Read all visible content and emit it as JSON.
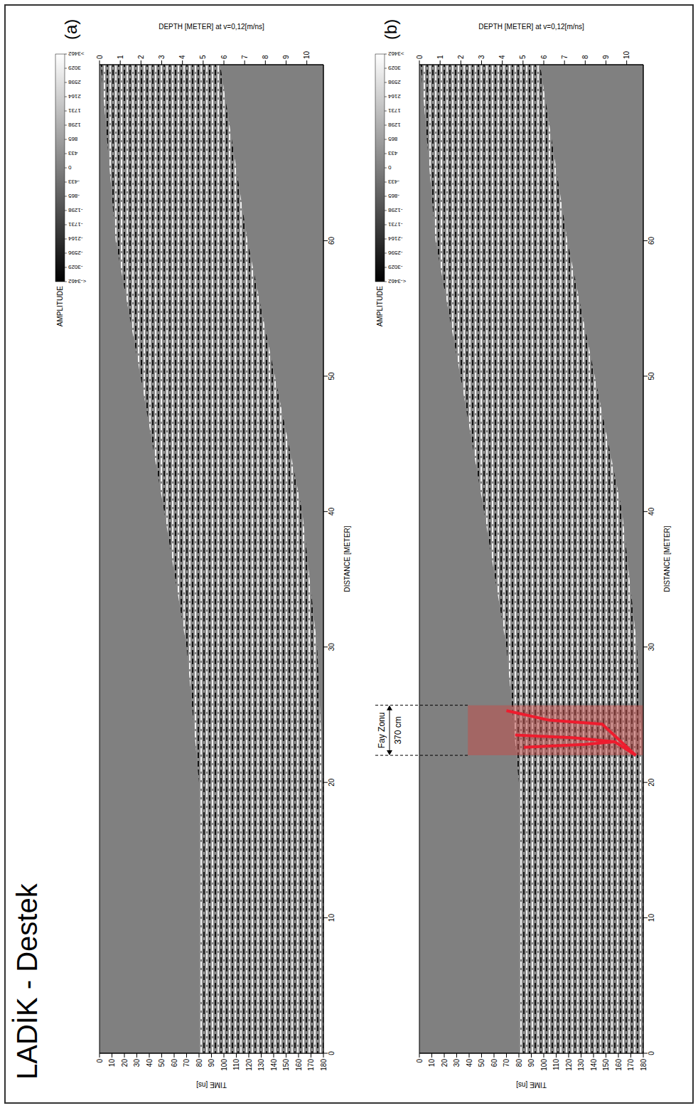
{
  "title": "LADİK - Destek",
  "chart_data": [
    {
      "type": "area",
      "panel_label": "(a)",
      "x_label": "DISTANCE [METER]",
      "y_label": "TIME [ns]",
      "y2_label": "DEPTH [METER] at v=0,12[m/ns]",
      "x": [
        0,
        20,
        30,
        40,
        50,
        60,
        73
      ],
      "top": [
        80,
        80,
        70,
        52,
        33,
        13,
        1
      ],
      "bottom": [
        180,
        180,
        175,
        163,
        141,
        119,
        97
      ],
      "xlim": [
        0,
        73
      ],
      "xticks": [
        0,
        10,
        20,
        30,
        40,
        50,
        60
      ],
      "ylim": [
        0,
        180
      ],
      "yticks": [
        0,
        10,
        20,
        30,
        40,
        50,
        60,
        70,
        80,
        90,
        100,
        110,
        120,
        130,
        140,
        150,
        160,
        170,
        180
      ],
      "y2lim": [
        0,
        10.8
      ],
      "y2ticks": [
        0,
        1,
        2,
        3,
        4,
        5,
        6,
        7,
        8,
        9,
        10
      ],
      "colorbar": {
        "label": "AMPLITUDE",
        "range": [
          -3462,
          3462
        ],
        "ticks": [
          {
            "value": -3462,
            "label": "<-3462"
          },
          -3029,
          -2596,
          -2164,
          -1731,
          -1298,
          -865,
          -433,
          0,
          433,
          865,
          1298,
          1731,
          2164,
          2598,
          3029,
          {
            "value": 3462,
            "label": ">3462"
          }
        ]
      }
    },
    {
      "type": "area",
      "panel_label": "(b)",
      "x_label": "DISTANCE [METER]",
      "y_label": "TIME [ns]",
      "y2_label": "DEPTH [METER] at v=0,12[m/ns]",
      "x": [
        0,
        20,
        30,
        40,
        50,
        60,
        73
      ],
      "top": [
        80,
        80,
        70,
        52,
        33,
        13,
        1
      ],
      "bottom": [
        180,
        180,
        175,
        163,
        141,
        119,
        97
      ],
      "xlim": [
        0,
        73
      ],
      "xticks": [
        0,
        10,
        20,
        30,
        40,
        50,
        60
      ],
      "ylim": [
        0,
        180
      ],
      "yticks": [
        0,
        10,
        20,
        30,
        40,
        50,
        60,
        70,
        80,
        90,
        100,
        110,
        120,
        130,
        140,
        150,
        160,
        170,
        180
      ],
      "y2lim": [
        0,
        10.8
      ],
      "y2ticks": [
        0,
        1,
        2,
        3,
        4,
        5,
        6,
        7,
        8,
        9,
        10
      ],
      "colorbar": {
        "label": "AMPLITUDE",
        "range": [
          -3462,
          3462
        ],
        "ticks": [
          {
            "value": -3462,
            "label": "<-3462"
          },
          -3029,
          -2596,
          -2164,
          -1731,
          -1298,
          -865,
          -433,
          0,
          433,
          865,
          1298,
          1731,
          2164,
          2598,
          3029,
          {
            "value": 3462,
            "label": ">3462"
          }
        ]
      },
      "annotations": [
        {
          "text": "Fay Zonu",
          "width_label": "370 cm",
          "x_range": [
            22,
            25.7
          ],
          "y_range": [
            39,
            180
          ],
          "color": "#c0504d"
        }
      ],
      "fault_lines": {
        "color": "#ee1c2e",
        "lines": [
          {
            "x": [
              25.3,
              24.6,
              24.3,
              22.0
            ],
            "y": [
              70,
              104,
              147,
              174
            ]
          },
          {
            "x": [
              23.5,
              23.3,
              23.0,
              22.0
            ],
            "y": [
              77,
              123,
              157,
              174
            ]
          },
          {
            "x": [
              22.6,
              22.8,
              23.0
            ],
            "y": [
              84,
              133,
              157
            ]
          }
        ]
      }
    }
  ]
}
